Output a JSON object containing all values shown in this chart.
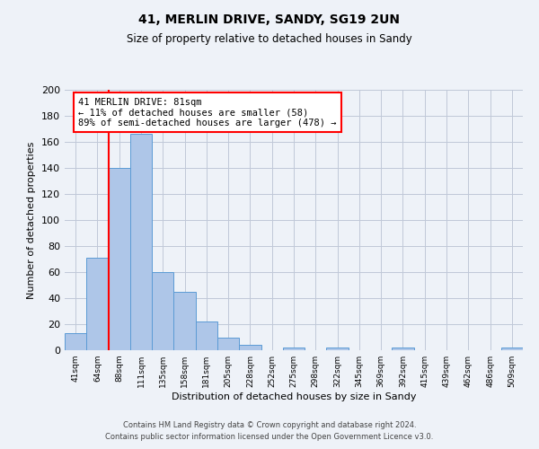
{
  "title": "41, MERLIN DRIVE, SANDY, SG19 2UN",
  "subtitle": "Size of property relative to detached houses in Sandy",
  "xlabel": "Distribution of detached houses by size in Sandy",
  "ylabel": "Number of detached properties",
  "footer_line1": "Contains HM Land Registry data © Crown copyright and database right 2024.",
  "footer_line2": "Contains public sector information licensed under the Open Government Licence v3.0.",
  "bin_labels": [
    "41sqm",
    "64sqm",
    "88sqm",
    "111sqm",
    "135sqm",
    "158sqm",
    "181sqm",
    "205sqm",
    "228sqm",
    "252sqm",
    "275sqm",
    "298sqm",
    "322sqm",
    "345sqm",
    "369sqm",
    "392sqm",
    "415sqm",
    "439sqm",
    "462sqm",
    "486sqm",
    "509sqm"
  ],
  "bar_values": [
    13,
    71,
    140,
    166,
    60,
    45,
    22,
    10,
    4,
    0,
    2,
    0,
    2,
    0,
    0,
    2,
    0,
    0,
    0,
    0,
    2
  ],
  "bar_color": "#aec6e8",
  "bar_edge_color": "#5b9bd5",
  "annotation_text_line1": "41 MERLIN DRIVE: 81sqm",
  "annotation_text_line2": "← 11% of detached houses are smaller (58)",
  "annotation_text_line3": "89% of semi-detached houses are larger (478) →",
  "annotation_box_color": "white",
  "annotation_box_edge_color": "red",
  "red_line_color": "red",
  "ylim": [
    0,
    200
  ],
  "yticks": [
    0,
    20,
    40,
    60,
    80,
    100,
    120,
    140,
    160,
    180,
    200
  ],
  "grid_color": "#c0c8d8",
  "background_color": "#eef2f8"
}
